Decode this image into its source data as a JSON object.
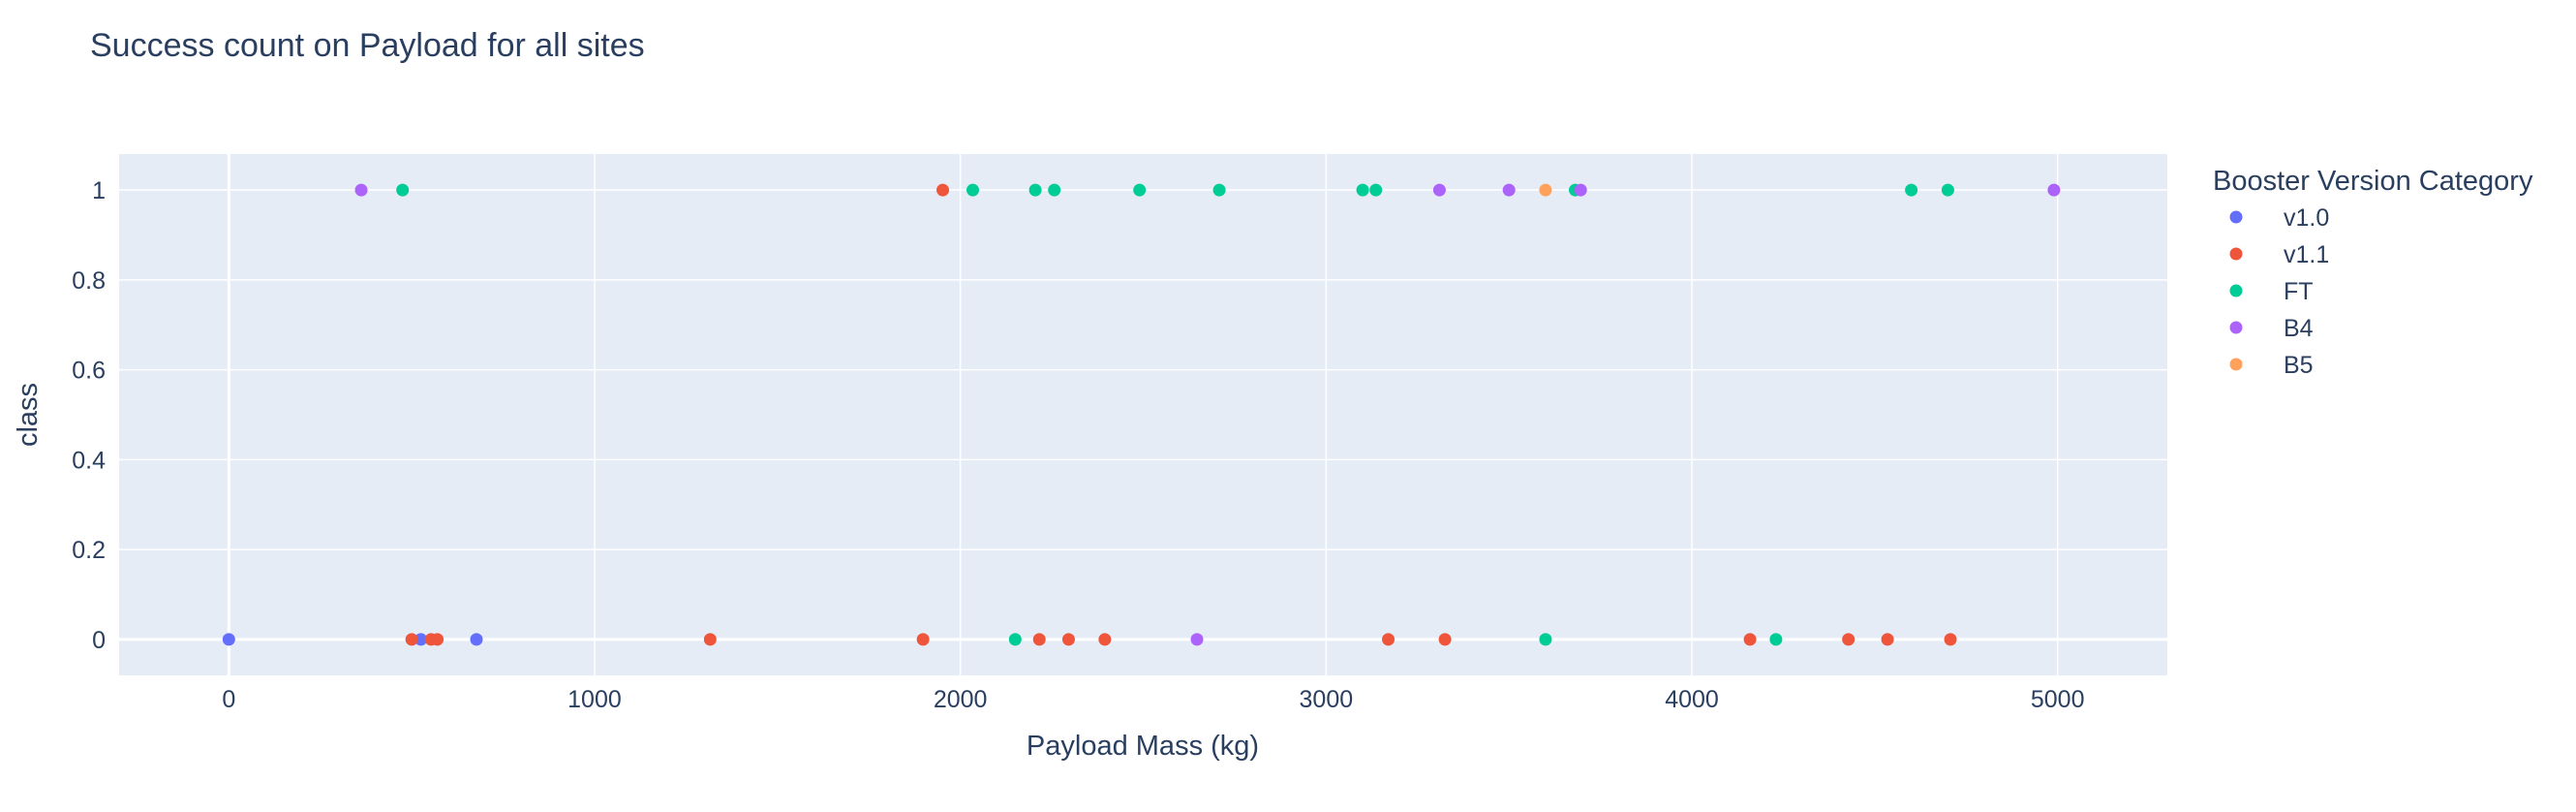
{
  "chart_data": {
    "type": "scatter",
    "title": "Success count on Payload for all sites",
    "xlabel": "Payload Mass (kg)",
    "ylabel": "class",
    "xlim": [
      -300,
      5300
    ],
    "ylim": [
      -0.08,
      1.08
    ],
    "x_ticks": [
      0,
      1000,
      2000,
      3000,
      4000,
      5000
    ],
    "x_tick_labels": [
      "0",
      "1000",
      "2000",
      "3000",
      "4000",
      "5000"
    ],
    "y_ticks": [
      0,
      0.2,
      0.4,
      0.6,
      0.8,
      1
    ],
    "y_tick_labels": [
      "0",
      "0.2",
      "0.4",
      "0.6",
      "0.8",
      "1"
    ],
    "grid": true,
    "legend_title": "Booster Version Category",
    "legend_position": "right",
    "series": [
      {
        "name": "v1.0",
        "color": "#636efa",
        "points": [
          [
            0,
            0
          ],
          [
            525,
            0
          ],
          [
            677,
            0
          ]
        ]
      },
      {
        "name": "v1.1",
        "color": "#ef553b",
        "points": [
          [
            500,
            0
          ],
          [
            553,
            0
          ],
          [
            570,
            0
          ],
          [
            1316,
            0
          ],
          [
            1898,
            0
          ],
          [
            1952,
            1
          ],
          [
            2216,
            0
          ],
          [
            2296,
            0
          ],
          [
            2395,
            0
          ],
          [
            3170,
            0
          ],
          [
            3325,
            0
          ],
          [
            4159,
            0
          ],
          [
            4428,
            0
          ],
          [
            4535,
            0
          ],
          [
            4707,
            0
          ]
        ]
      },
      {
        "name": "FT",
        "color": "#00cc96",
        "points": [
          [
            475,
            1
          ],
          [
            2034,
            1
          ],
          [
            2205,
            1
          ],
          [
            2257,
            1
          ],
          [
            2490,
            1
          ],
          [
            2708,
            1
          ],
          [
            3100,
            1
          ],
          [
            3136,
            1
          ],
          [
            3681,
            1
          ],
          [
            4600,
            1
          ],
          [
            4700,
            1
          ],
          [
            2150,
            0
          ],
          [
            3600,
            0
          ],
          [
            4230,
            0
          ]
        ]
      },
      {
        "name": "B4",
        "color": "#ab63fa",
        "points": [
          [
            362,
            1
          ],
          [
            3310,
            1
          ],
          [
            3500,
            1
          ],
          [
            3696,
            1
          ],
          [
            4990,
            1
          ],
          [
            2647,
            0
          ]
        ]
      },
      {
        "name": "B5",
        "color": "#ffa15a",
        "points": [
          [
            3600,
            1
          ]
        ]
      }
    ]
  }
}
